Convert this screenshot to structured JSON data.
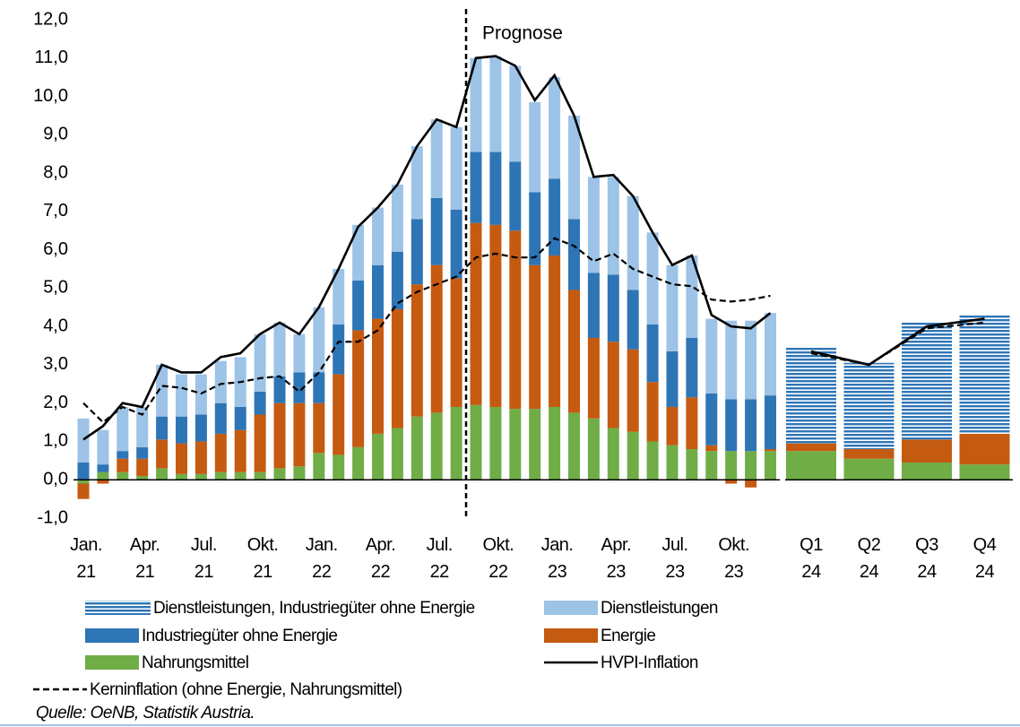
{
  "chart_data": {
    "type": "bar",
    "annotation": "Prognose",
    "source": "Quelle: OeNB, Statistik Austria.",
    "categories": [
      "Jan.\n21",
      null,
      null,
      "Apr.\n21",
      null,
      null,
      "Jul.\n21",
      null,
      null,
      "Okt.\n21",
      null,
      null,
      "Jan.\n22",
      null,
      null,
      "Apr.\n22",
      null,
      null,
      "Jul.\n22",
      null,
      null,
      "Okt.\n22",
      null,
      null,
      "Jan.\n23",
      null,
      null,
      "Apr.\n23",
      null,
      null,
      "Jul.\n23",
      null,
      null,
      "Okt.\n23",
      null,
      null,
      "Q1\n24",
      "Q2\n24",
      "Q3\n24",
      "Q4\n24"
    ],
    "ylim": [
      -1,
      12
    ],
    "yticks": [
      {
        "value": -1,
        "label": "-1,0"
      },
      {
        "value": 0,
        "label": "0,0"
      },
      {
        "value": 1,
        "label": "1,0"
      },
      {
        "value": 2,
        "label": "2,0"
      },
      {
        "value": 3,
        "label": "3,0"
      },
      {
        "value": 4,
        "label": "4,0"
      },
      {
        "value": 5,
        "label": "5,0"
      },
      {
        "value": 6,
        "label": "6,0"
      },
      {
        "value": 7,
        "label": "7,0"
      },
      {
        "value": 8,
        "label": "8,0"
      },
      {
        "value": 9,
        "label": "9,0"
      },
      {
        "value": 10,
        "label": "10,0"
      },
      {
        "value": 11,
        "label": "11,0"
      },
      {
        "value": 12,
        "label": "12,0"
      }
    ],
    "series": [
      {
        "name": "Nahrungsmittel",
        "color": "#70ad47",
        "values": [
          -0.1,
          0.2,
          0.2,
          0.1,
          0.3,
          0.15,
          0.15,
          0.2,
          0.2,
          0.2,
          0.3,
          0.35,
          0.7,
          0.65,
          0.85,
          1.2,
          1.35,
          1.65,
          1.75,
          1.9,
          1.95,
          1.9,
          1.85,
          1.85,
          1.9,
          1.75,
          1.6,
          1.35,
          1.25,
          1.0,
          0.9,
          0.8,
          0.75,
          0.75,
          0.75,
          0.75,
          0.75,
          0.55,
          0.45,
          0.4
        ]
      },
      {
        "name": "Energie",
        "color": "#c55a11",
        "values": [
          -0.4,
          -0.1,
          0.35,
          0.45,
          0.75,
          0.8,
          0.85,
          1.0,
          1.1,
          1.5,
          1.7,
          1.65,
          1.3,
          2.1,
          3.05,
          3.0,
          3.1,
          3.45,
          3.85,
          3.35,
          4.75,
          4.75,
          4.65,
          3.75,
          3.95,
          3.2,
          2.1,
          2.25,
          2.15,
          1.55,
          1.0,
          1.35,
          0.15,
          -0.1,
          -0.2,
          0.05,
          0.2,
          0.25,
          0.6,
          0.8
        ]
      },
      {
        "name": "Industriegüter ohne Energie",
        "color": "#2e75b6",
        "values": [
          0.45,
          0.2,
          0.2,
          0.3,
          0.6,
          0.7,
          0.7,
          0.8,
          0.6,
          0.6,
          0.7,
          0.8,
          0.8,
          1.3,
          1.3,
          1.4,
          1.5,
          1.7,
          1.75,
          1.8,
          1.85,
          1.9,
          1.8,
          1.9,
          2.0,
          1.85,
          1.7,
          1.75,
          1.55,
          1.5,
          1.45,
          1.55,
          1.35,
          1.35,
          1.35,
          1.4,
          null,
          null,
          null,
          null
        ]
      },
      {
        "name": "Dienstleistungen",
        "color": "#9dc3e6",
        "values": [
          1.15,
          0.9,
          1.15,
          1.05,
          1.35,
          1.1,
          1.05,
          1.1,
          1.3,
          1.5,
          1.4,
          1.0,
          1.7,
          1.45,
          1.45,
          1.5,
          1.75,
          1.9,
          2.05,
          2.15,
          2.45,
          2.5,
          2.5,
          2.35,
          2.65,
          2.7,
          2.5,
          2.55,
          2.45,
          2.4,
          2.25,
          2.15,
          1.95,
          2.05,
          2.05,
          2.15,
          null,
          null,
          null,
          null
        ]
      },
      {
        "name": "Dienstleistungen, Industriegüter ohne Energie",
        "color": "#2e75b6",
        "pattern": "stripes",
        "values": [
          null,
          null,
          null,
          null,
          null,
          null,
          null,
          null,
          null,
          null,
          null,
          null,
          null,
          null,
          null,
          null,
          null,
          null,
          null,
          null,
          null,
          null,
          null,
          null,
          null,
          null,
          null,
          null,
          null,
          null,
          null,
          null,
          null,
          null,
          null,
          null,
          2.5,
          2.25,
          3.05,
          3.1
        ]
      },
      {
        "name": "HVPI-Inflation",
        "color": "#000000",
        "kind": "line",
        "dash": false,
        "values": [
          1.05,
          1.4,
          2.0,
          1.9,
          3.0,
          2.8,
          2.8,
          3.2,
          3.3,
          3.8,
          4.1,
          3.8,
          4.5,
          5.5,
          6.6,
          7.1,
          7.7,
          8.7,
          9.4,
          9.2,
          11.0,
          11.05,
          10.8,
          9.9,
          10.55,
          9.5,
          7.9,
          7.95,
          7.4,
          6.45,
          5.6,
          5.85,
          4.3,
          4.0,
          3.95,
          4.35,
          3.35,
          3.0,
          4.0,
          4.2
        ]
      },
      {
        "name": "Kerninflation (ohne Energie, Nahrungsmittel)",
        "color": "#000000",
        "kind": "line",
        "dash": true,
        "values": [
          2.0,
          1.5,
          1.9,
          1.7,
          2.45,
          2.4,
          2.25,
          2.5,
          2.55,
          2.65,
          2.7,
          2.3,
          2.8,
          3.6,
          3.6,
          3.9,
          4.6,
          4.9,
          5.1,
          5.3,
          5.8,
          5.9,
          5.8,
          5.8,
          6.3,
          6.1,
          5.7,
          5.9,
          5.5,
          5.3,
          5.1,
          5.05,
          4.7,
          4.65,
          4.7,
          4.8,
          3.3,
          3.0,
          3.95,
          4.1
        ]
      }
    ]
  }
}
